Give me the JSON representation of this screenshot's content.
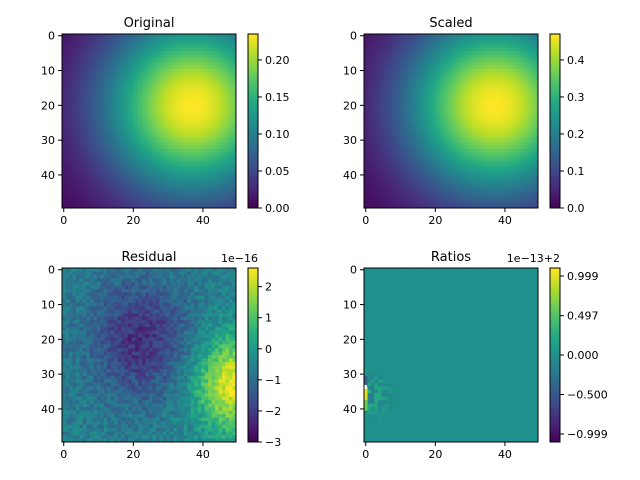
{
  "chart_data": [
    {
      "type": "heatmap",
      "title": "Original",
      "x_ticks": [
        "0",
        "20",
        "40"
      ],
      "y_ticks": [
        "0",
        "10",
        "20",
        "30",
        "40"
      ],
      "extent": [
        -0.5,
        49.5,
        49.5,
        -0.5
      ],
      "grid_shape": [
        50,
        50
      ],
      "pattern": "gaussian",
      "peak": {
        "x": 37,
        "y": 20,
        "value": 0.235
      },
      "clim": [
        0.0,
        0.235
      ],
      "colorbar_ticks": [
        {
          "v": 0.0,
          "label": "0.00"
        },
        {
          "v": 0.05,
          "label": "0.05"
        },
        {
          "v": 0.1,
          "label": "0.10"
        },
        {
          "v": 0.15,
          "label": "0.15"
        },
        {
          "v": 0.2,
          "label": "0.20"
        }
      ],
      "colorbar_offset": "",
      "colormap": "viridis"
    },
    {
      "type": "heatmap",
      "title": "Scaled",
      "x_ticks": [
        "0",
        "20",
        "40"
      ],
      "y_ticks": [
        "0",
        "10",
        "20",
        "30",
        "40"
      ],
      "extent": [
        -0.5,
        49.5,
        49.5,
        -0.5
      ],
      "grid_shape": [
        50,
        50
      ],
      "pattern": "gaussian",
      "peak": {
        "x": 37,
        "y": 20,
        "value": 0.47
      },
      "clim": [
        0.0,
        0.47
      ],
      "colorbar_ticks": [
        {
          "v": 0.0,
          "label": "0.0"
        },
        {
          "v": 0.1,
          "label": "0.1"
        },
        {
          "v": 0.2,
          "label": "0.2"
        },
        {
          "v": 0.3,
          "label": "0.3"
        },
        {
          "v": 0.4,
          "label": "0.4"
        }
      ],
      "colorbar_offset": "",
      "colormap": "viridis"
    },
    {
      "type": "heatmap",
      "title": "Residual",
      "x_ticks": [
        "0",
        "20",
        "40"
      ],
      "y_ticks": [
        "0",
        "10",
        "20",
        "30",
        "40"
      ],
      "extent": [
        -0.5,
        49.5,
        49.5,
        -0.5
      ],
      "grid_shape": [
        50,
        50
      ],
      "pattern": "residual",
      "clim": [
        -3.0,
        2.6
      ],
      "colorbar_ticks": [
        {
          "v": 2,
          "label": "2"
        },
        {
          "v": 1,
          "label": "1"
        },
        {
          "v": 0,
          "label": "0"
        },
        {
          "v": -1,
          "label": "−1"
        },
        {
          "v": -2,
          "label": "−2"
        },
        {
          "v": -3,
          "label": "−3"
        }
      ],
      "colorbar_offset": "1e−16",
      "colormap": "viridis"
    },
    {
      "type": "heatmap",
      "title": "Ratios",
      "x_ticks": [
        "0",
        "20",
        "40"
      ],
      "y_ticks": [
        "0",
        "10",
        "20",
        "30",
        "40"
      ],
      "extent": [
        -0.5,
        49.5,
        49.5,
        -0.5
      ],
      "grid_shape": [
        50,
        50
      ],
      "pattern": "ratios",
      "clim": [
        -1.1,
        1.1
      ],
      "colorbar_ticks": [
        {
          "v": 0.999,
          "label": "0.999"
        },
        {
          "v": 0.497,
          "label": "0.497"
        },
        {
          "v": 0.0,
          "label": "0.000"
        },
        {
          "v": -0.5,
          "label": "−0.500"
        },
        {
          "v": -0.999,
          "label": "−0.999"
        }
      ],
      "colorbar_offset": "1e−13+2",
      "colormap": "viridis"
    }
  ]
}
